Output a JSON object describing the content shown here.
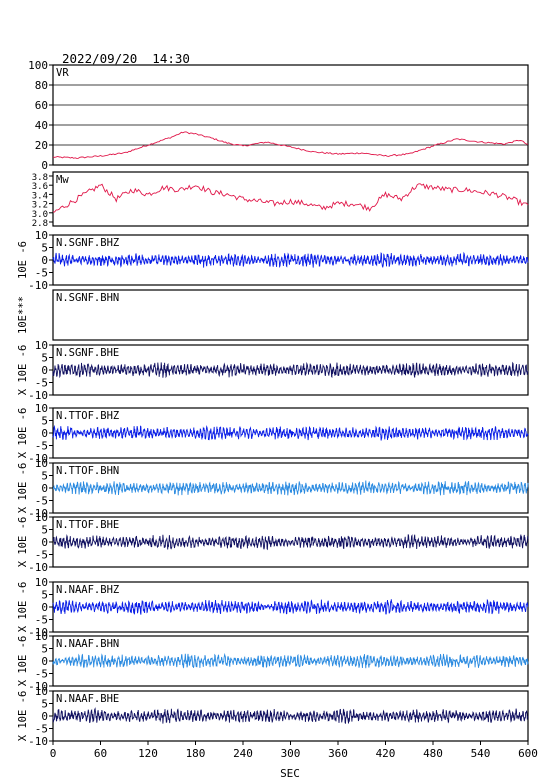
{
  "header": {
    "timestamp": "2022/09/20  14:30"
  },
  "colors": {
    "frame": "#000000",
    "vr": "#e0184a",
    "mw": "#e0184a",
    "blue": "#0a1ee6",
    "light_blue": "#2a8ae0",
    "navy": "#101060"
  },
  "chart_data": {
    "type": "line",
    "xlabel": "SEC",
    "xlim": [
      0,
      600
    ],
    "xticks": [
      "0",
      "60",
      "120",
      "180",
      "240",
      "300",
      "360",
      "420",
      "480",
      "540",
      "600"
    ],
    "panels": [
      {
        "id": "vr",
        "label": "VR",
        "ylabel": "",
        "ylim": [
          0,
          100
        ],
        "yticks": [
          "0",
          "20",
          "40",
          "60",
          "80",
          "100"
        ],
        "grid": true,
        "color_key": "vr",
        "kind": "series",
        "x": [
          0,
          30,
          60,
          90,
          120,
          150,
          165,
          180,
          200,
          220,
          240,
          270,
          300,
          330,
          360,
          390,
          420,
          450,
          480,
          510,
          540,
          570,
          590,
          600
        ],
        "y": [
          8,
          7,
          9,
          12,
          20,
          28,
          33,
          31,
          27,
          22,
          19,
          23,
          18,
          13,
          11,
          12,
          9,
          11,
          19,
          26,
          23,
          21,
          25,
          20
        ]
      },
      {
        "id": "mw",
        "label": "Mw",
        "ylabel": "",
        "ylim": [
          2.8,
          3.8
        ],
        "yticks": [
          "2.8",
          "3.0",
          "3.2",
          "3.4",
          "3.6",
          "3.8"
        ],
        "grid": false,
        "color_key": "mw",
        "kind": "series",
        "x": [
          0,
          20,
          40,
          60,
          80,
          100,
          120,
          140,
          160,
          180,
          200,
          220,
          240,
          260,
          280,
          300,
          320,
          340,
          360,
          380,
          400,
          420,
          440,
          460,
          480,
          500,
          520,
          540,
          560,
          580,
          600
        ],
        "y": [
          3.0,
          3.2,
          3.4,
          3.6,
          3.3,
          3.5,
          3.4,
          3.55,
          3.5,
          3.6,
          3.45,
          3.4,
          3.3,
          3.25,
          3.2,
          3.25,
          3.2,
          3.1,
          3.2,
          3.2,
          3.1,
          3.4,
          3.3,
          3.6,
          3.55,
          3.5,
          3.5,
          3.45,
          3.4,
          3.3,
          3.15
        ]
      },
      {
        "id": "sgnf-bhz",
        "label": "N.SGNF.BHZ",
        "ylabel": "10E -6",
        "ylim": [
          -10,
          10
        ],
        "yticks": [
          "-10",
          "-5",
          "0",
          "5",
          "10"
        ],
        "color_key": "blue",
        "kind": "wave"
      },
      {
        "id": "sgnf-bhn",
        "label": "N.SGNF.BHN",
        "ylabel": "10E***",
        "ylim": [
          -10,
          10
        ],
        "yticks": [],
        "color_key": "blue",
        "kind": "empty"
      },
      {
        "id": "sgnf-bhe",
        "label": "N.SGNF.BHE",
        "ylabel": "X 10E -6",
        "ylim": [
          -10,
          10
        ],
        "yticks": [
          "-10",
          "-5",
          "0",
          "5",
          "10"
        ],
        "color_key": "navy",
        "kind": "wave"
      },
      {
        "id": "ttof-bhz",
        "label": "N.TTOF.BHZ",
        "ylabel": "X 10E -6",
        "ylim": [
          -10,
          10
        ],
        "yticks": [
          "-10",
          "-5",
          "0",
          "5",
          "10"
        ],
        "color_key": "blue",
        "kind": "wave"
      },
      {
        "id": "ttof-bhn",
        "label": "N.TTOF.BHN",
        "ylabel": "X 10E -6",
        "ylim": [
          -10,
          10
        ],
        "yticks": [
          "-10",
          "-5",
          "0",
          "5",
          "10"
        ],
        "color_key": "light_blue",
        "kind": "wave"
      },
      {
        "id": "ttof-bhe",
        "label": "N.TTOF.BHE",
        "ylabel": "X 10E -6",
        "ylim": [
          -10,
          10
        ],
        "yticks": [
          "-10",
          "-5",
          "0",
          "5",
          "10"
        ],
        "color_key": "navy",
        "kind": "wave"
      },
      {
        "id": "naaf-bhz",
        "label": "N.NAAF.BHZ",
        "ylabel": "X 10E -6",
        "ylim": [
          -10,
          10
        ],
        "yticks": [
          "-10",
          "-5",
          "0",
          "5",
          "10"
        ],
        "color_key": "blue",
        "kind": "wave"
      },
      {
        "id": "naaf-bhn",
        "label": "N.NAAF.BHN",
        "ylabel": "X 10E -6",
        "ylim": [
          -10,
          10
        ],
        "yticks": [
          "-10",
          "-5",
          "0",
          "5",
          "10"
        ],
        "color_key": "light_blue",
        "kind": "wave"
      },
      {
        "id": "naaf-bhe",
        "label": "N.NAAF.BHE",
        "ylabel": "X 10E -6",
        "ylim": [
          -10,
          10
        ],
        "yticks": [
          "-10",
          "-5",
          "0",
          "5",
          "10"
        ],
        "color_key": "navy",
        "kind": "wave"
      }
    ]
  }
}
